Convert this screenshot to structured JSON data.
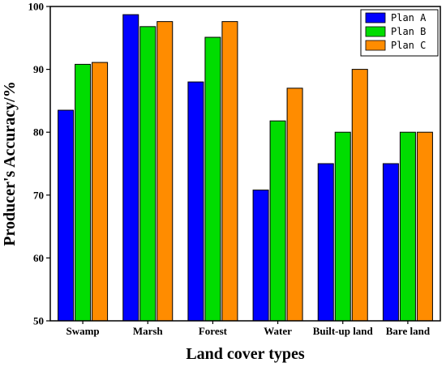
{
  "chart_data": {
    "type": "bar",
    "categories": [
      "Swamp",
      "Marsh",
      "Forest",
      "Water",
      "Built-up land",
      "Bare land"
    ],
    "series": [
      {
        "name": "Plan A",
        "color": "#0000FF",
        "values": [
          83.5,
          98.7,
          88.0,
          70.8,
          75.0,
          75.0
        ]
      },
      {
        "name": "Plan B",
        "color": "#00DD00",
        "values": [
          90.8,
          96.8,
          95.1,
          81.8,
          80.0,
          80.0
        ]
      },
      {
        "name": "Plan C",
        "color": "#FF8C00",
        "values": [
          91.1,
          97.6,
          97.6,
          87.0,
          90.0,
          80.0
        ]
      }
    ],
    "xlabel": "Land cover types",
    "ylabel": "Producer's Accuracy/%",
    "ylim": [
      50,
      100
    ],
    "yticks": [
      50,
      60,
      70,
      80,
      90,
      100
    ],
    "legend_position": "top-right",
    "grid": false
  }
}
